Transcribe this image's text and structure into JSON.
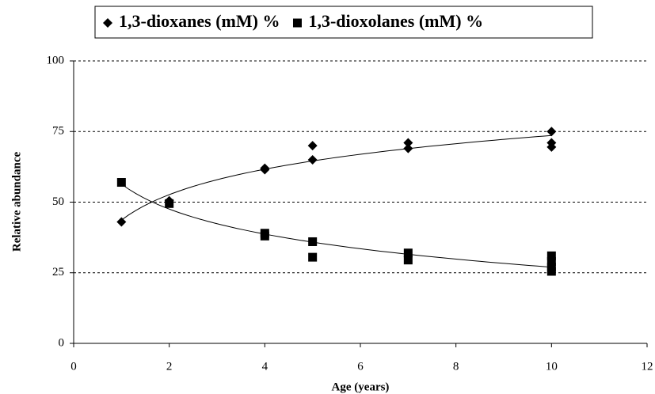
{
  "chart_data": {
    "type": "scatter",
    "x_label": "Age (years)",
    "y_label": "Relative abundance",
    "xlim": [
      0,
      12
    ],
    "xticks": [
      0,
      2,
      4,
      6,
      8,
      10,
      12
    ],
    "ylim": [
      0,
      100
    ],
    "yticks": [
      0,
      25,
      50,
      75,
      100
    ],
    "grid": true,
    "trendline": "log",
    "legend": "top",
    "series": [
      {
        "name": "1,3-dioxanes (mM) %",
        "color": "#000000",
        "marker": "diamond",
        "x": [
          1,
          2,
          4,
          4,
          5,
          5,
          7,
          7,
          10,
          10,
          10
        ],
        "values": [
          43,
          50.5,
          62,
          61.5,
          70,
          65,
          71,
          69,
          75,
          71,
          69.5
        ]
      },
      {
        "name": "1,3-dioxolanes (mM) %",
        "color": "#000000",
        "marker": "square",
        "x": [
          1,
          2,
          4,
          4,
          5,
          5,
          7,
          7,
          10,
          10,
          10,
          10
        ],
        "values": [
          57,
          49.5,
          39,
          38,
          36,
          30.5,
          32,
          29.5,
          31,
          29,
          27,
          25.5
        ]
      }
    ]
  }
}
